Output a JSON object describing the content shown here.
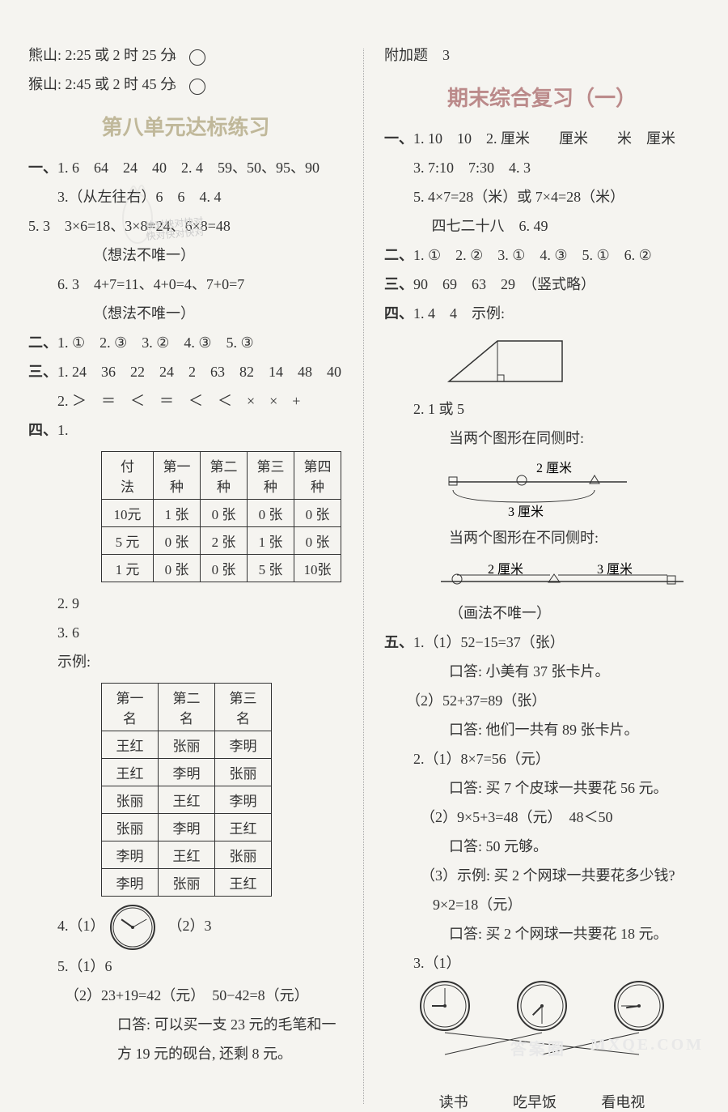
{
  "top": {
    "bear": "熊山: 2:25 或 2 时 25 分",
    "monkey": "猴山: 2:45 或 2 时 45 分",
    "bear_num": "④",
    "monkey_num": "⑤"
  },
  "unit8_title": "第八单元达标练习",
  "sec1": {
    "label": "一、",
    "q1": "1. 6　64　24　40　",
    "q2": "2. 4　59、50、95、90",
    "q3": "3.（从左往右）6　6　",
    "q4": "4. 4",
    "q5a": "5. 3　3×6=18、3×8=24、6×8=48",
    "q5b": "（想法不唯一）",
    "q6a": "6. 3　4+7=11、4+0=4、7+0=7",
    "q6b": "（想法不唯一）"
  },
  "sec2": {
    "label": "二、",
    "text": "1. ①　2. ③　3. ②　4. ③　5. ③"
  },
  "sec3": {
    "label": "三、",
    "q1": "1. 24　36　22　24　2　63　82　14　48　40",
    "q2": "2. ＞　＝　＜　＝　＜　＜　×　×　+"
  },
  "sec4": {
    "label": "四、",
    "q1": "1.",
    "table1": {
      "headers": [
        "付　法",
        "第一种",
        "第二种",
        "第三种",
        "第四种"
      ],
      "rows": [
        [
          "10元",
          "1 张",
          "0 张",
          "0 张",
          "0 张"
        ],
        [
          "5 元",
          "0 张",
          "2 张",
          "1 张",
          "0 张"
        ],
        [
          "1 元",
          "0 张",
          "0 张",
          "5 张",
          "10张"
        ]
      ],
      "col_widths": [
        "64px",
        "58px",
        "58px",
        "58px",
        "58px"
      ]
    },
    "q2": "2. 9",
    "q3": "3. 6",
    "example": "示例:",
    "table2": {
      "headers": [
        "第一名",
        "第二名",
        "第三名"
      ],
      "rows": [
        [
          "王红",
          "张丽",
          "李明"
        ],
        [
          "王红",
          "李明",
          "张丽"
        ],
        [
          "张丽",
          "王红",
          "李明"
        ],
        [
          "张丽",
          "李明",
          "王红"
        ],
        [
          "李明",
          "王红",
          "张丽"
        ],
        [
          "李明",
          "张丽",
          "王红"
        ]
      ],
      "col_widths": [
        "70px",
        "70px",
        "70px"
      ]
    },
    "q4": "4.（1）",
    "q4b": "（2）3",
    "q5a": "5.（1）6",
    "q5b": "（2）23+19=42（元）　50−42=8（元）",
    "q5c": "口答: 可以买一支 23 元的毛笔和一方 19 元的砚台, 还剩 8 元。"
  },
  "right": {
    "top": "附加题　3",
    "review_title": "期末综合复习（一）",
    "s1": {
      "label": "一、",
      "q1": "1. 10　10　2. 厘米　　厘米　　米　厘米",
      "q3": "3. 7:10　7:30　4. 3",
      "q5": "5. 4×7=28（米）或 7×4=28（米）",
      "q5b": "　 四七二十八　6. 49"
    },
    "s2": {
      "label": "二、",
      "text": "1. ①　2. ②　3. ①　4. ③　5. ①　6. ②"
    },
    "s3": {
      "label": "三、",
      "text": "90　69　63　29　（竖式略）"
    },
    "s4": {
      "label": "四、",
      "q1": "1. 4　4　示例:",
      "q2": "2. 1 或 5",
      "q2a": "当两个图形在同侧时:",
      "len2": "2 厘米",
      "len3": "3 厘米",
      "q2b": "当两个图形在不同侧时:",
      "note": "（画法不唯一）"
    },
    "s5": {
      "label": "五、",
      "q1a": "1.（1）52−15=37（张）",
      "q1at": "口答: 小美有 37 张卡片。",
      "q1b": "（2）52+37=89（张）",
      "q1bt": "口答: 他们一共有 89 张卡片。",
      "q2a": "2.（1）8×7=56（元）",
      "q2at": "口答: 买 7 个皮球一共要花 56 元。",
      "q2b": "（2）9×5+3=48（元）　48＜50",
      "q2bt": "口答: 50 元够。",
      "q2c": "（3）示例: 买 2 个网球一共要花多少钱?　9×2=18（元）",
      "q2ct": "口答: 买 2 个网球一共要花 18 元。",
      "q3": "3.（1）",
      "labels": [
        "读书",
        "吃早饭",
        "看电视"
      ]
    }
  },
  "colors": {
    "text": "#333333",
    "heading_grey": "#c0b89a",
    "heading_red": "#bb8a8a",
    "bg": "#f5f4f0"
  },
  "clocks": {
    "q4_1": {
      "hour": 10,
      "minute": 10
    },
    "r1": {
      "hour": 9,
      "minute": 0
    },
    "r2": {
      "hour": 7,
      "minute": 30
    },
    "r3": {
      "hour": 8,
      "minute": 45
    }
  }
}
